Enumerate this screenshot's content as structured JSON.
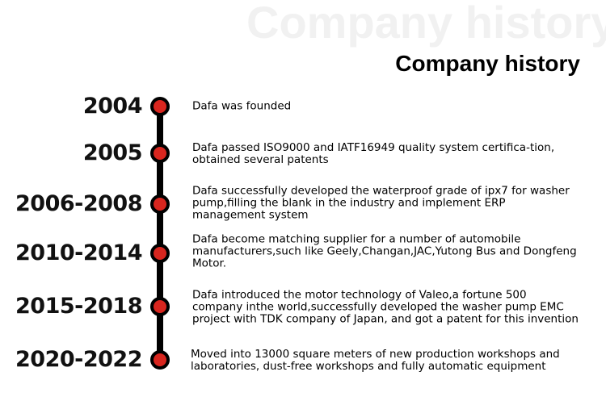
{
  "header": {
    "watermark": "Company history",
    "title": "Company history"
  },
  "colors": {
    "dot": "#d9261f",
    "line": "#000000"
  },
  "timeline": [
    {
      "year": "2004",
      "text": "Dafa was founded"
    },
    {
      "year": "2005",
      "text": "Dafa passed ISO9000 and IATF16949 quality system certifica-tion, obtained several patents"
    },
    {
      "year": "2006-2008",
      "text": "Dafa successfully developed the waterproof grade of ipx7 for washer pump,filling the blank in the industry and implement ERP management system"
    },
    {
      "year": "2010-2014",
      "text": "Dafa become matching supplier for a number of automobile manufacturers,such like Geely,Changan,JAC,Yutong Bus and Dongfeng Motor."
    },
    {
      "year": "2015-2018",
      "text": "Dafa introduced the motor technology of Valeo,a fortune 500 company inthe world,successfully developed the washer pump EMC project with TDK company of Japan, and got a patent for this invention"
    },
    {
      "year": "2020-2022",
      "text": "Moved into 13000 square meters of new production workshops and laboratories, dust-free workshops and fully automatic equipment"
    }
  ]
}
